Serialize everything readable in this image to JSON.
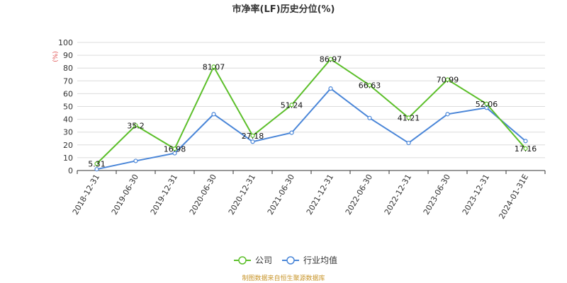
{
  "chart_data": {
    "type": "line",
    "title": "市净率(LF)历史分位(%)",
    "unit_label": "(%)",
    "categories": [
      "2018-12-31",
      "2019-06-30",
      "2019-12-31",
      "2020-06-30",
      "2020-12-31",
      "2021-06-30",
      "2021-12-31",
      "2022-06-30",
      "2022-12-31",
      "2023-06-30",
      "2023-12-31",
      "2024-01-31E"
    ],
    "ylim": [
      0,
      100
    ],
    "yticks": [
      0,
      10,
      20,
      30,
      40,
      50,
      60,
      70,
      80,
      90,
      100
    ],
    "grid": true,
    "legend_position": "bottom-center",
    "series": [
      {
        "name": "公司",
        "color": "#5cbf2a",
        "values": [
          5.31,
          35.2,
          16.98,
          81.07,
          27.18,
          51.24,
          86.97,
          66.63,
          41.21,
          70.99,
          52.06,
          17.16
        ],
        "labels": [
          "5.31",
          "35.2",
          "16.98",
          "81.07",
          "27.18",
          "51.24",
          "86.97",
          "66.63",
          "41.21",
          "70.99",
          "52.06",
          "17.16"
        ]
      },
      {
        "name": "行业均值",
        "color": "#4a86d8",
        "values": [
          1.0,
          7.5,
          13.5,
          44.0,
          22.5,
          29.5,
          64.0,
          41.0,
          21.5,
          44.0,
          49.0,
          23.0
        ]
      }
    ],
    "source": "制图数据来自恒生聚源数据库"
  }
}
